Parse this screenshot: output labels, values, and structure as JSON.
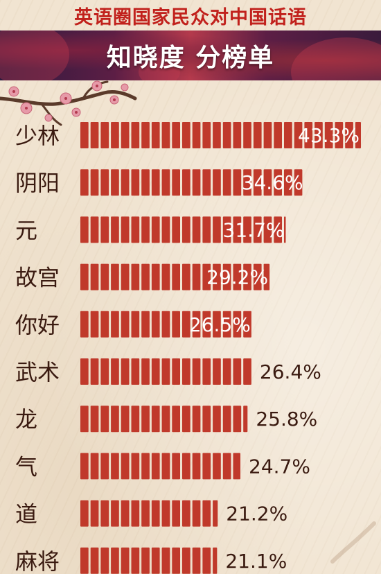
{
  "header": {
    "title": "英语圈国家民众对中国话语",
    "subtitle": "知晓度 分榜单"
  },
  "colors": {
    "bar": "#c0392b",
    "title": "#c1211c",
    "label": "#3a1a10",
    "value_on_bar": "#ffffff",
    "value_off_bar": "#3a1a10"
  },
  "chart_data": {
    "type": "bar",
    "orientation": "horizontal",
    "categories": [
      "少林",
      "阴阳",
      "元",
      "故宫",
      "你好",
      "武术",
      "龙",
      "气",
      "道",
      "麻将"
    ],
    "values": [
      43.3,
      34.6,
      31.7,
      29.2,
      26.5,
      26.4,
      25.8,
      24.7,
      21.2,
      21.1
    ],
    "value_labels": [
      "43.3%",
      "34.6%",
      "31.7%",
      "29.2%",
      "26.5%",
      "26.4%",
      "25.8%",
      "24.7%",
      "21.2%",
      "21.1%"
    ],
    "title": "英语圈国家民众对中国话语",
    "subtitle": "知晓度 分榜单",
    "xlabel": "",
    "ylabel": "",
    "grid": false,
    "legend": "none"
  }
}
